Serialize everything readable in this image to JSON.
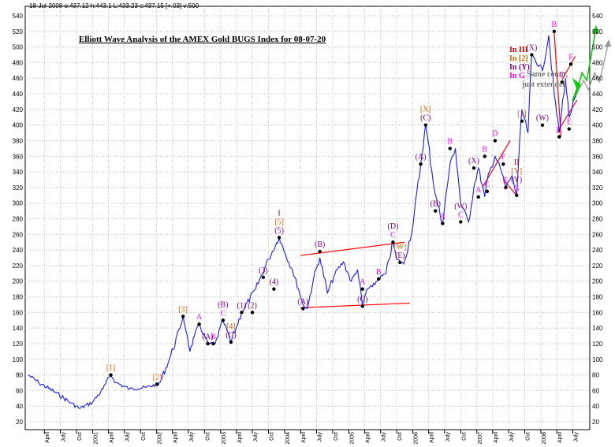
{
  "header": "18-Jul-2008  o:437.12 h:443.1 L:433.23 c:437.15 [+.03] v:500",
  "chart_data": {
    "type": "line",
    "title": "Elliott Wave Analysis of the AMEX Gold BUGS Index for 08-07-20",
    "ylim": [
      20,
      545
    ],
    "y_ticks": [
      20,
      40,
      60,
      80,
      100,
      120,
      140,
      160,
      180,
      200,
      220,
      240,
      260,
      280,
      300,
      320,
      340,
      360,
      380,
      400,
      420,
      440,
      460,
      480,
      500,
      520,
      540
    ],
    "x_labels": [
      "April",
      "July",
      "Oct",
      "2001",
      "April",
      "July",
      "Oct",
      "2002",
      "April",
      "July",
      "Oct",
      "2003",
      "April",
      "July",
      "Oct",
      "2004",
      "April",
      "July",
      "Oct",
      "2005",
      "April",
      "July",
      "Oct",
      "2006",
      "April",
      "July",
      "Oct",
      "2007",
      "April",
      "July",
      "Oct",
      "2008",
      "April",
      "July"
    ],
    "series": [
      {
        "color": "#1a1aff",
        "x": [
          "2000-01-01",
          "2000-03-01",
          "2000-06-01",
          "2000-09-01",
          "2000-10-20",
          "2001-01-01",
          "2001-03-01",
          "2001-04-15",
          "2001-05-15",
          "2001-08-01",
          "2001-11-01",
          "2002-01-05",
          "2002-01-20",
          "2002-03-15",
          "2002-05-15",
          "2002-06-01",
          "2002-06-25",
          "2002-07-10",
          "2002-08-05",
          "2002-09-01",
          "2002-10-20",
          "2002-12-01",
          "2003-01-15",
          "2003-03-01",
          "2003-05-01",
          "2003-07-20",
          "2003-10-01",
          "2003-12-01",
          "2004-01-05",
          "2004-02-15",
          "2004-03-20",
          "2004-04-15",
          "2004-05-10",
          "2004-06-15",
          "2004-07-20",
          "2004-09-01",
          "2004-10-15",
          "2004-12-01",
          "2005-01-15",
          "2005-02-20",
          "2005-03-20",
          "2005-04-15",
          "2005-05-15",
          "2005-06-20",
          "2005-08-01",
          "2005-09-10",
          "2005-10-01",
          "2005-11-10",
          "2006-01-01",
          "2006-02-15",
          "2006-03-15",
          "2006-05-10",
          "2006-06-20",
          "2006-08-01",
          "2006-09-01",
          "2006-10-01",
          "2006-11-15",
          "2006-12-15",
          "2007-01-10",
          "2007-02-15",
          "2007-03-01",
          "2007-04-15",
          "2007-05-15",
          "2007-06-15",
          "2007-07-20",
          "2007-08-16",
          "2007-09-15",
          "2007-10-20",
          "2007-11-10",
          "2008-01-10",
          "2008-02-15",
          "2008-03-17",
          "2008-04-15",
          "2008-05-20",
          "2008-06-10",
          "2008-07-18"
        ],
        "y": [
          80,
          70,
          58,
          44,
          37,
          45,
          62,
          80,
          70,
          62,
          64,
          68,
          70,
          100,
          140,
          155,
          130,
          110,
          130,
          145,
          120,
          120,
          150,
          122,
          160,
          190,
          228,
          256,
          235,
          214,
          190,
          170,
          165,
          205,
          230,
          185,
          210,
          225,
          200,
          215,
          168,
          190,
          193,
          203,
          210,
          250,
          228,
          222,
          270,
          350,
          400,
          310,
          274,
          350,
          370,
          300,
          276,
          320,
          345,
          308,
          330,
          360,
          345,
          320,
          335,
          310,
          420,
          390,
          490,
          470,
          515,
          440,
          390,
          460,
          410,
          437
        ]
      }
    ],
    "wave_labels": [
      {
        "x": "2001-04-15",
        "y": 80,
        "text": "[1]",
        "color": "#e06000"
      },
      {
        "x": "2002-01-05",
        "y": 68,
        "text": "[2]",
        "color": "#e06000"
      },
      {
        "x": "2002-06-01",
        "y": 155,
        "text": "[3]",
        "color": "#e06000"
      },
      {
        "x": "2002-10-20",
        "y": 120,
        "text": "(A)",
        "color": "#800080"
      },
      {
        "x": "2002-09-01",
        "y": 145,
        "text": "A",
        "color": "#ff00ff"
      },
      {
        "x": "2002-11-20",
        "y": 120,
        "text": "B",
        "color": "#ff00ff"
      },
      {
        "x": "2003-01-15",
        "y": 150,
        "text": "C",
        "color": "#ff00ff"
      },
      {
        "x": "2003-01-15",
        "y": 150,
        "text": "(B)",
        "color": "#800080"
      },
      {
        "x": "2003-03-01",
        "y": 122,
        "text": "(C)",
        "color": "#800080"
      },
      {
        "x": "2003-03-01",
        "y": 122,
        "text": "[4]",
        "color": "#e06000"
      },
      {
        "x": "2003-05-01",
        "y": 160,
        "text": "(1)",
        "color": "#800080"
      },
      {
        "x": "2003-07-01",
        "y": 160,
        "text": "(2)",
        "color": "#800080"
      },
      {
        "x": "2003-09-01",
        "y": 205,
        "text": "(3)",
        "color": "#800080"
      },
      {
        "x": "2003-11-01",
        "y": 190,
        "text": "(4)",
        "color": "#800080"
      },
      {
        "x": "2003-12-01",
        "y": 256,
        "text": "(5)",
        "color": "#800080"
      },
      {
        "x": "2003-12-01",
        "y": 256,
        "text": "[5]",
        "color": "#e06000"
      },
      {
        "x": "2003-12-01",
        "y": 256,
        "text": "I",
        "color": "#cc0000"
      },
      {
        "x": "2004-04-15",
        "y": 165,
        "text": "(A)",
        "color": "#800080"
      },
      {
        "x": "2004-07-20",
        "y": 238,
        "text": "(B)",
        "color": "#800080"
      },
      {
        "x": "2005-03-20",
        "y": 168,
        "text": "(C)",
        "color": "#800080"
      },
      {
        "x": "2005-03-20",
        "y": 190,
        "text": "A",
        "color": "#ff00ff"
      },
      {
        "x": "2005-06-20",
        "y": 203,
        "text": "B",
        "color": "#ff00ff"
      },
      {
        "x": "2005-09-10",
        "y": 250,
        "text": "C",
        "color": "#ff00ff"
      },
      {
        "x": "2005-09-10",
        "y": 250,
        "text": "(D)",
        "color": "#800080"
      },
      {
        "x": "2005-10-20",
        "y": 224,
        "text": "(E)",
        "color": "#800080"
      },
      {
        "x": "2005-10-20",
        "y": 224,
        "text": "[W]",
        "color": "#e06000"
      },
      {
        "x": "2006-02-15",
        "y": 350,
        "text": "(A)",
        "color": "#800080"
      },
      {
        "x": "2006-03-15",
        "y": 400,
        "text": "(C)",
        "color": "#800080"
      },
      {
        "x": "2006-03-15",
        "y": 400,
        "text": "[X]",
        "color": "#e06000"
      },
      {
        "x": "2006-05-10",
        "y": 290,
        "text": "(B)",
        "color": "#800080"
      },
      {
        "x": "2006-06-20",
        "y": 274,
        "text": "A",
        "color": "#ff00ff"
      },
      {
        "x": "2006-08-01",
        "y": 370,
        "text": "B",
        "color": "#ff00ff"
      },
      {
        "x": "2006-10-01",
        "y": 276,
        "text": "C",
        "color": "#ff00ff"
      },
      {
        "x": "2006-10-01",
        "y": 276,
        "text": "(W)",
        "color": "#800080"
      },
      {
        "x": "2006-12-15",
        "y": 345,
        "text": "(X)",
        "color": "#800080"
      },
      {
        "x": "2007-01-10",
        "y": 308,
        "text": "A",
        "color": "#ff00ff"
      },
      {
        "x": "2007-02-15",
        "y": 360,
        "text": "B",
        "color": "#ff00ff"
      },
      {
        "x": "2007-03-01",
        "y": 315,
        "text": "C",
        "color": "#ff00ff"
      },
      {
        "x": "2007-04-15",
        "y": 380,
        "text": "D",
        "color": "#ff00ff"
      },
      {
        "x": "2007-06-15",
        "y": 320,
        "text": "E",
        "color": "#ff00ff"
      },
      {
        "x": "2007-06-01",
        "y": 350,
        "text": "F",
        "color": "#ff00ff"
      },
      {
        "x": "2007-08-16",
        "y": 310,
        "text": "G",
        "color": "#ff00ff"
      },
      {
        "x": "2007-08-16",
        "y": 310,
        "text": "(Y)",
        "color": "#800080"
      },
      {
        "x": "2007-08-16",
        "y": 310,
        "text": "[Y]",
        "color": "#e06000"
      },
      {
        "x": "2007-08-16",
        "y": 310,
        "text": "II",
        "color": "#cc0000"
      },
      {
        "x": "2007-09-15",
        "y": 405,
        "text": "[1]",
        "color": "#e06000"
      },
      {
        "x": "2007-11-10",
        "y": 490,
        "text": "(X)",
        "color": "#800080"
      },
      {
        "x": "2008-01-10",
        "y": 400,
        "text": "(W)",
        "color": "#800080"
      },
      {
        "x": "2008-03-17",
        "y": 520,
        "text": "B",
        "color": "#ff00ff"
      },
      {
        "x": "2008-04-15",
        "y": 385,
        "text": "C",
        "color": "#ff00ff"
      },
      {
        "x": "2008-05-01",
        "y": 455,
        "text": "D",
        "color": "#ff00ff"
      },
      {
        "x": "2008-06-10",
        "y": 395,
        "text": "E",
        "color": "#ff00ff"
      },
      {
        "x": "2008-06-20",
        "y": 478,
        "text": "F",
        "color": "#ff00ff"
      }
    ],
    "right_labels": [
      {
        "text": "In III",
        "color": "#cc0000"
      },
      {
        "text": "In [2]",
        "color": "#e06000"
      },
      {
        "text": "In (Y)",
        "color": "#800080"
      },
      {
        "text": "In G",
        "color": "#ff00ff"
      }
    ],
    "note": [
      "Same count,",
      "just extended"
    ],
    "trendlines": [
      {
        "x": [
          "2004-04-01",
          "2005-11-15"
        ],
        "y": [
          233,
          250
        ],
        "color": "#ff0000"
      },
      {
        "x": [
          "2004-04-01",
          "2005-12-15"
        ],
        "y": [
          166,
          172
        ],
        "color": "#ff0000"
      },
      {
        "x": [
          "2007-02-01",
          "2007-07-10"
        ],
        "y": [
          320,
          380
        ],
        "color": "#ff0000"
      },
      {
        "x": [
          "2007-06-01",
          "2007-08-16"
        ],
        "y": [
          330,
          310
        ],
        "color": "#ff0000"
      },
      {
        "x": [
          "2008-03-17",
          "2008-04-25"
        ],
        "y": [
          520,
          385
        ],
        "color": "#ff0000"
      },
      {
        "x": [
          "2008-04-01",
          "2008-07-25"
        ],
        "y": [
          390,
          432
        ],
        "color": "#ff0000"
      },
      {
        "x": [
          "2008-05-01",
          "2008-07-15"
        ],
        "y": [
          458,
          488
        ],
        "color": "#ff0000"
      }
    ]
  }
}
